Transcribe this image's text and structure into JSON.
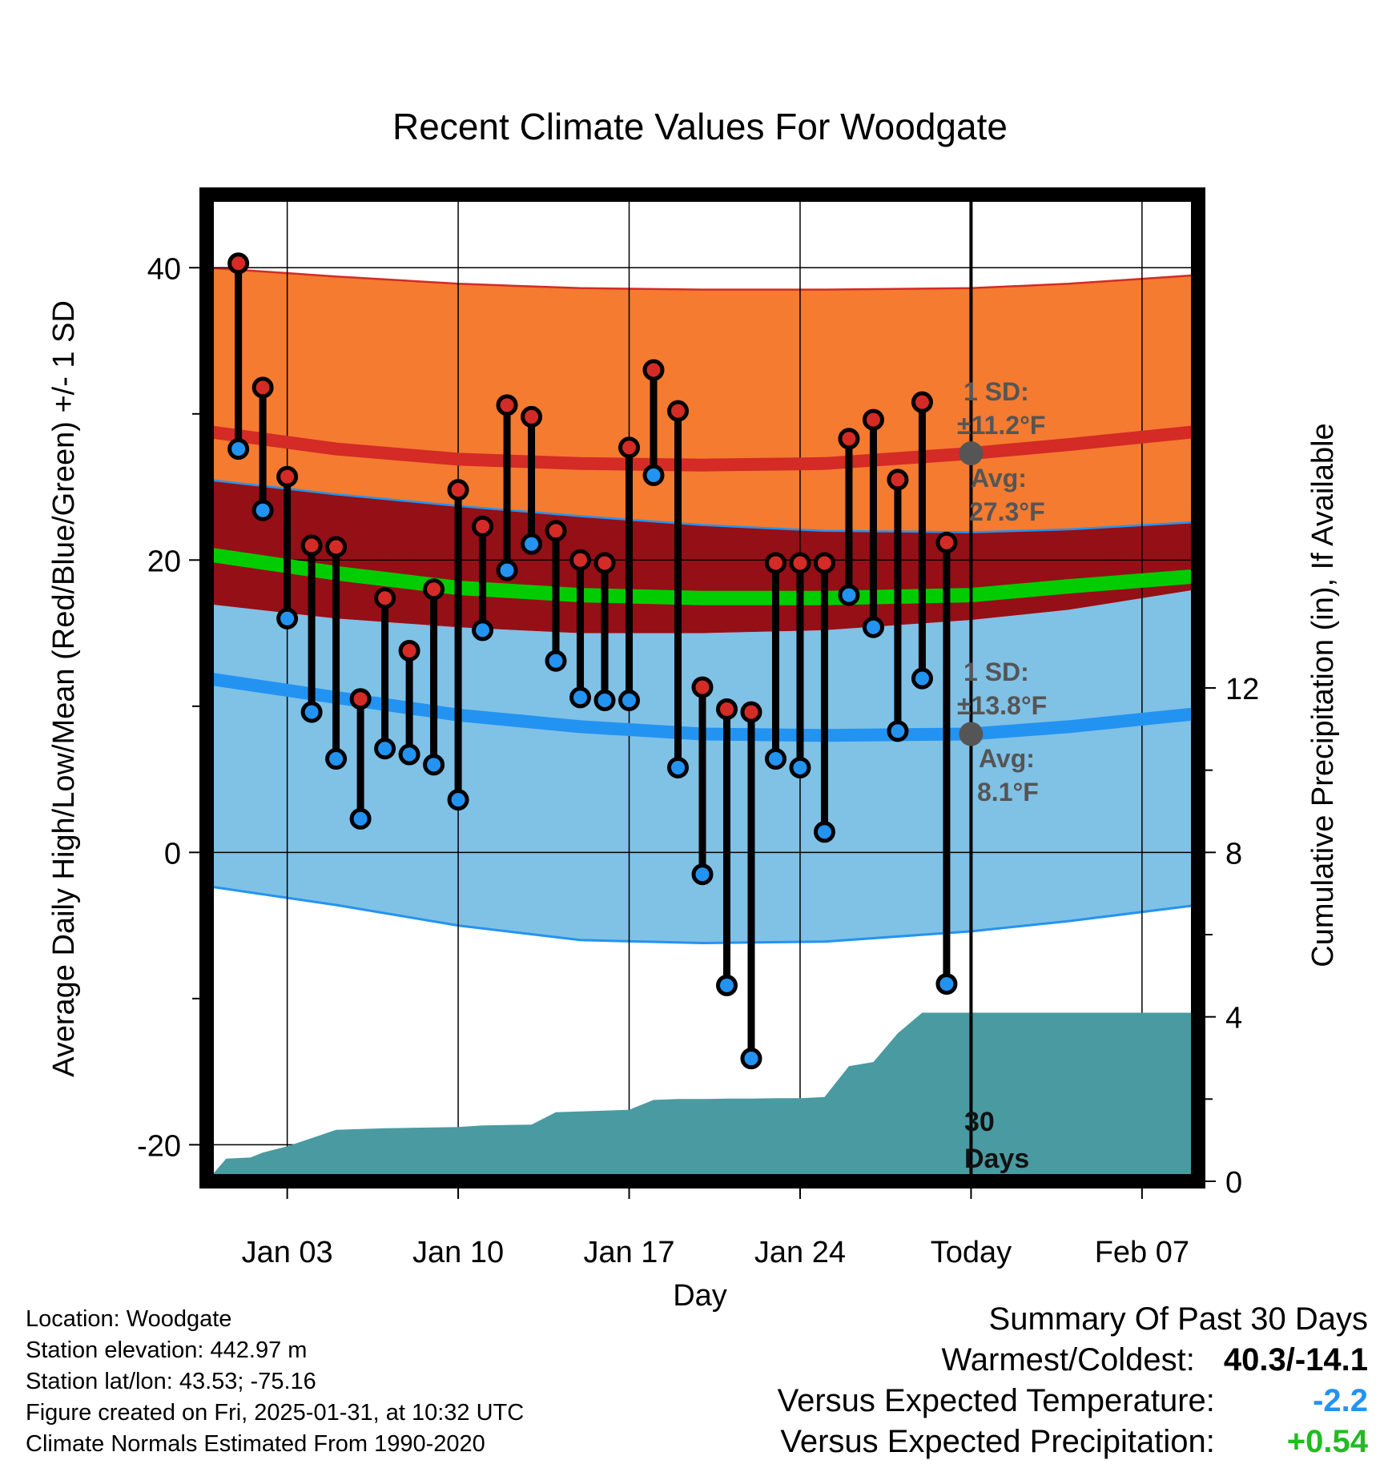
{
  "info": {
    "location": "Location: Woodgate",
    "elevation": "Station elevation: 442.97 m",
    "latlon": "Station lat/lon: 43.53; -75.16",
    "created": "Figure created on Fri, 2025-01-31, at 10:32 UTC",
    "normals": "Climate Normals Estimated From 1990-2020"
  },
  "summary": {
    "heading": "Summary Of Past 30 Days",
    "warmest_label": "Warmest/Coldest:",
    "warmest_value": "40.3/-14.1",
    "temp_label": "Versus Expected Temperature:",
    "temp_value": "-2.2",
    "precip_label": "Versus Expected Precipitation:",
    "precip_value": "+0.54"
  },
  "colors": {
    "high_band": "#f47b30",
    "high_avg": "#d42b26",
    "overlap": "#950f17",
    "low_band": "#80c1e6",
    "low_avg": "#2393f2",
    "mean_line": "#00cc00",
    "precip": "#4a9aa2",
    "temp_negative": "#2393f2",
    "precip_positive": "#22bb22"
  },
  "chart_data": {
    "type": "line",
    "title": "Recent Climate Values For Woodgate",
    "xlabel": "Day",
    "ylabel": "Average Daily High/Low/Mean (Red/Blue/Green) +/- 1 SD",
    "y2label": "Cumulative Precipitation (in), If Available",
    "x_ticks": [
      "Jan 03",
      "Jan 10",
      "Jan 17",
      "Jan 24",
      "Today",
      "Feb 07"
    ],
    "x_tick_days": [
      3,
      10,
      17,
      24,
      31,
      38
    ],
    "xlim": [
      -0.3,
      40.3
    ],
    "ylim": [
      -22.5,
      45
    ],
    "y_ticks": [
      -20,
      0,
      20,
      40
    ],
    "y2lim": [
      0,
      24
    ],
    "y2_ticks": [
      0,
      4,
      8,
      12
    ],
    "today_day": 31,
    "normals_days": [
      -0.3,
      5,
      10,
      15,
      20,
      25,
      31,
      35,
      40.3
    ],
    "normal_high": [
      28.8,
      27.6,
      26.9,
      26.6,
      26.5,
      26.6,
      27.3,
      27.9,
      28.8
    ],
    "normal_high_upper": [
      40.0,
      39.4,
      38.9,
      38.6,
      38.5,
      38.5,
      38.6,
      38.9,
      39.5
    ],
    "normal_high_lower": [
      25.5,
      24.5,
      23.7,
      23.0,
      22.4,
      22.0,
      21.9,
      22.1,
      22.6
    ],
    "normal_low": [
      11.9,
      10.6,
      9.4,
      8.6,
      8.1,
      8.0,
      8.1,
      8.6,
      9.5
    ],
    "normal_low_upper": [
      17.0,
      16.0,
      15.4,
      15.0,
      15.0,
      15.2,
      15.9,
      16.6,
      18.0
    ],
    "normal_low_lower": [
      -2.3,
      -3.6,
      -5.0,
      -6.0,
      -6.2,
      -6.1,
      -5.4,
      -4.7,
      -3.6
    ],
    "normal_mean": [
      20.4,
      19.1,
      18.1,
      17.6,
      17.4,
      17.4,
      17.6,
      18.2,
      18.9
    ],
    "annotations": {
      "high_sd_line1": "1 SD:",
      "high_sd_line2": "±11.2°F",
      "high_avg_line1": "Avg:",
      "high_avg_line2": "27.3°F",
      "low_sd_line1": "1 SD:",
      "low_sd_line2": "±13.8°F",
      "low_avg_line1": "Avg:",
      "low_avg_line2": "8.1°F",
      "high_avg_value": 27.3,
      "low_avg_value": 8.1,
      "days_line1": "30",
      "days_line2": "Days"
    },
    "observed_days": [
      1,
      2,
      3,
      4,
      5,
      6,
      7,
      8,
      9,
      10,
      11,
      12,
      13,
      14,
      15,
      16,
      17,
      18,
      19,
      20,
      21,
      22,
      23,
      24,
      25,
      26,
      27,
      28,
      29,
      30
    ],
    "observed_high": [
      40.3,
      31.8,
      25.7,
      21.0,
      20.9,
      10.5,
      17.4,
      13.8,
      18.0,
      24.8,
      22.3,
      30.6,
      29.8,
      22.0,
      20.0,
      19.8,
      27.7,
      33.0,
      30.2,
      11.3,
      9.8,
      9.6,
      19.8,
      19.8,
      19.8,
      28.3,
      29.6,
      25.5,
      30.8,
      21.2
    ],
    "observed_low": [
      27.6,
      23.4,
      16.0,
      9.6,
      6.4,
      2.3,
      7.1,
      6.7,
      6.0,
      3.6,
      15.2,
      19.3,
      21.1,
      13.1,
      10.6,
      10.4,
      10.4,
      25.8,
      5.8,
      -1.5,
      -9.1,
      -14.1,
      6.4,
      5.8,
      1.4,
      17.6,
      15.4,
      8.3,
      11.9,
      -9.0
    ],
    "precip_days": [
      -0.3,
      0.5,
      1.5,
      2.0,
      3.0,
      4.0,
      5.0,
      6.0,
      7.0,
      8.0,
      9.0,
      10.0,
      11.0,
      12.0,
      13.0,
      14.0,
      15.0,
      16.0,
      17.0,
      18.0,
      19.0,
      20.0,
      21.0,
      22.0,
      23.0,
      24.0,
      25.0,
      26.0,
      27.0,
      28.0,
      29.0,
      30.0,
      31.0,
      40.3
    ],
    "precip_cum": [
      0.0,
      0.55,
      0.58,
      0.7,
      0.85,
      1.05,
      1.25,
      1.27,
      1.29,
      1.3,
      1.31,
      1.32,
      1.36,
      1.37,
      1.38,
      1.68,
      1.7,
      1.72,
      1.74,
      1.98,
      2.0,
      2.0,
      2.01,
      2.01,
      2.02,
      2.02,
      2.05,
      2.8,
      2.9,
      3.6,
      4.1,
      4.1,
      4.1,
      4.1
    ]
  }
}
